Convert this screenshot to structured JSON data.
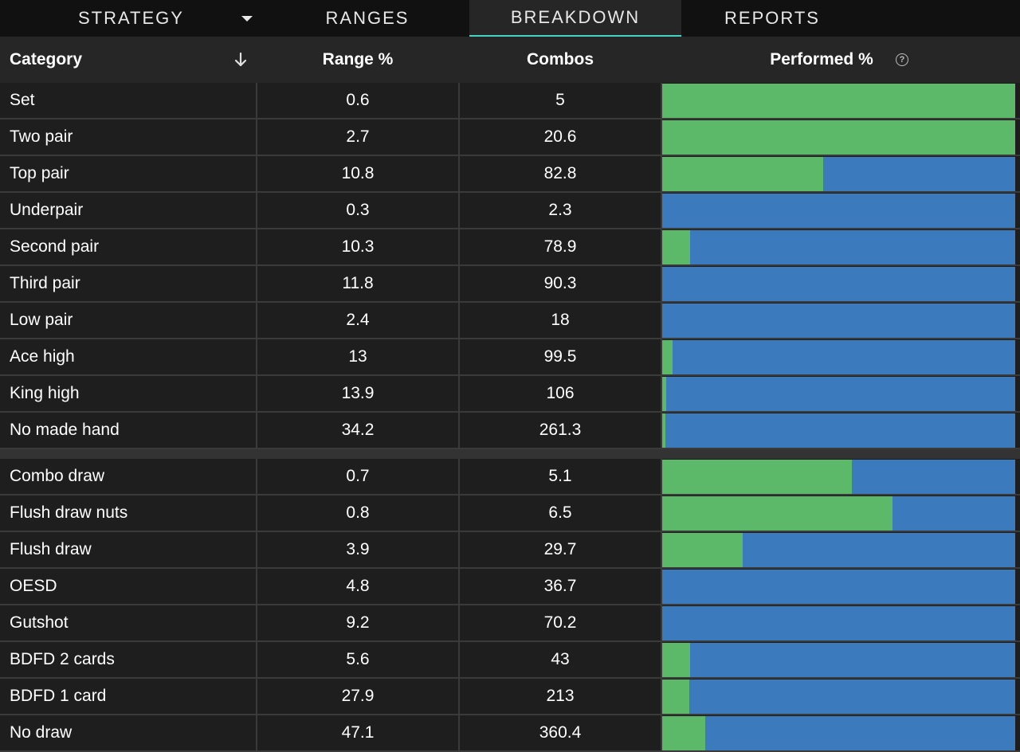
{
  "tabs": [
    {
      "label": "STRATEGY",
      "active": false,
      "has_dropdown": true
    },
    {
      "label": "RANGES",
      "active": false
    },
    {
      "label": "BREAKDOWN",
      "active": true
    },
    {
      "label": "REPORTS",
      "active": false
    }
  ],
  "header": {
    "category": "Category",
    "range": "Range %",
    "combos": "Combos",
    "performed": "Performed %",
    "sort_icon": "arrow-down-icon",
    "help_icon": "question-circle-icon"
  },
  "colors": {
    "green": "#5cb96a",
    "blue": "#3a7abd",
    "accent": "#45d4c0"
  },
  "groups": [
    {
      "rows": [
        {
          "category": "Set",
          "range": "0.6",
          "combos": "5",
          "green_pct": 100
        },
        {
          "category": "Two pair",
          "range": "2.7",
          "combos": "20.6",
          "green_pct": 100
        },
        {
          "category": "Top pair",
          "range": "10.8",
          "combos": "82.8",
          "green_pct": 45.5
        },
        {
          "category": "Underpair",
          "range": "0.3",
          "combos": "2.3",
          "green_pct": 0
        },
        {
          "category": "Second pair",
          "range": "10.3",
          "combos": "78.9",
          "green_pct": 8
        },
        {
          "category": "Third pair",
          "range": "11.8",
          "combos": "90.3",
          "green_pct": 0
        },
        {
          "category": "Low pair",
          "range": "2.4",
          "combos": "18",
          "green_pct": 0
        },
        {
          "category": "Ace high",
          "range": "13",
          "combos": "99.5",
          "green_pct": 3
        },
        {
          "category": "King high",
          "range": "13.9",
          "combos": "106",
          "green_pct": 1.2
        },
        {
          "category": "No made hand",
          "range": "34.2",
          "combos": "261.3",
          "green_pct": 1
        }
      ]
    },
    {
      "rows": [
        {
          "category": "Combo draw",
          "range": "0.7",
          "combos": "5.1",
          "green_pct": 53.7
        },
        {
          "category": "Flush draw nuts",
          "range": "0.8",
          "combos": "6.5",
          "green_pct": 65.2
        },
        {
          "category": "Flush draw",
          "range": "3.9",
          "combos": "29.7",
          "green_pct": 22.8
        },
        {
          "category": "OESD",
          "range": "4.8",
          "combos": "36.7",
          "green_pct": 0
        },
        {
          "category": "Gutshot",
          "range": "9.2",
          "combos": "70.2",
          "green_pct": 0
        },
        {
          "category": "BDFD 2 cards",
          "range": "5.6",
          "combos": "43",
          "green_pct": 8
        },
        {
          "category": "BDFD 1 card",
          "range": "27.9",
          "combos": "213",
          "green_pct": 7.6
        },
        {
          "category": "No draw",
          "range": "47.1",
          "combos": "360.4",
          "green_pct": 12.2
        }
      ]
    }
  ]
}
